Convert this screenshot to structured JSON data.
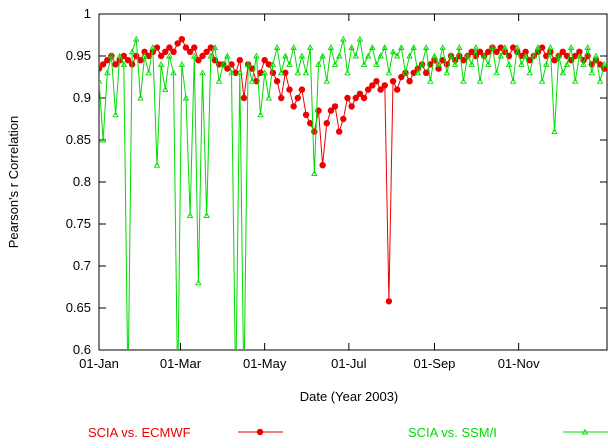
{
  "chart_data": {
    "type": "line",
    "xlabel": "Date (Year 2003)",
    "ylabel": "Pearson's r Correlation",
    "x": [
      0,
      3,
      6,
      9,
      12,
      15,
      18,
      21,
      24,
      27,
      30,
      33,
      36,
      39,
      42,
      45,
      48,
      51,
      54,
      57,
      60,
      63,
      66,
      69,
      72,
      75,
      78,
      81,
      84,
      87,
      90,
      93,
      96,
      99,
      102,
      105,
      108,
      111,
      114,
      117,
      120,
      123,
      126,
      129,
      132,
      135,
      138,
      141,
      144,
      147,
      150,
      153,
      156,
      159,
      162,
      165,
      168,
      171,
      174,
      177,
      180,
      183,
      186,
      189,
      192,
      195,
      198,
      201,
      204,
      207,
      210,
      213,
      216,
      219,
      222,
      225,
      228,
      231,
      234,
      237,
      240,
      243,
      246,
      249,
      252,
      255,
      258,
      261,
      264,
      267,
      270,
      273,
      276,
      279,
      282,
      285,
      288,
      291,
      294,
      297,
      300,
      303,
      306,
      309,
      312,
      315,
      318,
      321,
      324,
      327,
      330,
      333,
      336,
      339,
      342,
      345,
      348,
      351,
      354,
      357,
      360,
      363,
      366
    ],
    "xlim": [
      0,
      368
    ],
    "xticks": [
      {
        "value": 0,
        "label": "01-Jan"
      },
      {
        "value": 59,
        "label": "01-Mar"
      },
      {
        "value": 120,
        "label": "01-May"
      },
      {
        "value": 181,
        "label": "01-Jul"
      },
      {
        "value": 243,
        "label": "01-Sep"
      },
      {
        "value": 304,
        "label": "01-Nov"
      }
    ],
    "ylim": [
      0.6,
      1
    ],
    "yticks": [
      0.6,
      0.65,
      0.7,
      0.75,
      0.8,
      0.85,
      0.9,
      0.95,
      1
    ],
    "series": [
      {
        "name": "SCIA vs. ECMWF",
        "color": "#ee0000",
        "marker": "circle",
        "values": [
          0.935,
          0.94,
          0.945,
          0.95,
          0.94,
          0.945,
          0.95,
          0.945,
          0.94,
          0.95,
          0.945,
          0.955,
          0.95,
          0.955,
          0.96,
          0.95,
          0.955,
          0.96,
          0.955,
          0.965,
          0.97,
          0.96,
          0.955,
          0.96,
          0.945,
          0.95,
          0.955,
          0.96,
          0.945,
          0.94,
          0.94,
          0.935,
          0.94,
          0.93,
          0.945,
          0.9,
          0.94,
          0.935,
          0.92,
          0.93,
          0.945,
          0.94,
          0.93,
          0.92,
          0.9,
          0.93,
          0.91,
          0.89,
          0.9,
          0.91,
          0.88,
          0.87,
          0.86,
          0.885,
          0.82,
          0.87,
          0.885,
          0.89,
          0.86,
          0.875,
          0.9,
          0.89,
          0.9,
          0.905,
          0.9,
          0.91,
          0.915,
          0.92,
          0.91,
          0.915,
          0.658,
          0.92,
          0.91,
          0.925,
          0.93,
          0.92,
          0.93,
          0.935,
          0.94,
          0.93,
          0.94,
          0.945,
          0.935,
          0.945,
          0.94,
          0.95,
          0.945,
          0.95,
          0.945,
          0.95,
          0.955,
          0.95,
          0.955,
          0.95,
          0.955,
          0.96,
          0.955,
          0.96,
          0.955,
          0.95,
          0.96,
          0.955,
          0.95,
          0.955,
          0.945,
          0.95,
          0.955,
          0.96,
          0.95,
          0.955,
          0.945,
          0.95,
          0.955,
          0.95,
          0.945,
          0.95,
          0.955,
          0.945,
          0.95,
          0.94,
          0.945,
          0.94,
          0.935
        ]
      },
      {
        "name": "SCIA vs. SSM/I",
        "color": "#00dd00",
        "marker": "triangle",
        "values": [
          0.92,
          0.85,
          0.93,
          0.95,
          0.88,
          0.95,
          0.94,
          0.55,
          0.955,
          0.97,
          0.9,
          0.95,
          0.93,
          0.96,
          0.82,
          0.94,
          0.91,
          0.95,
          0.93,
          0.55,
          0.94,
          0.9,
          0.76,
          0.95,
          0.68,
          0.93,
          0.76,
          0.95,
          0.96,
          0.92,
          0.94,
          0.95,
          0.93,
          0.55,
          0.93,
          0.55,
          0.94,
          0.92,
          0.95,
          0.88,
          0.93,
          0.9,
          0.94,
          0.96,
          0.93,
          0.95,
          0.94,
          0.96,
          0.93,
          0.95,
          0.93,
          0.96,
          0.81,
          0.94,
          0.95,
          0.92,
          0.96,
          0.94,
          0.95,
          0.97,
          0.93,
          0.96,
          0.95,
          0.97,
          0.94,
          0.95,
          0.96,
          0.94,
          0.95,
          0.96,
          0.93,
          0.955,
          0.95,
          0.96,
          0.93,
          0.95,
          0.96,
          0.93,
          0.94,
          0.96,
          0.92,
          0.95,
          0.94,
          0.96,
          0.93,
          0.95,
          0.94,
          0.96,
          0.92,
          0.95,
          0.94,
          0.96,
          0.92,
          0.95,
          0.94,
          0.96,
          0.93,
          0.95,
          0.96,
          0.94,
          0.92,
          0.96,
          0.94,
          0.95,
          0.93,
          0.95,
          0.96,
          0.92,
          0.94,
          0.96,
          0.86,
          0.95,
          0.93,
          0.94,
          0.96,
          0.92,
          0.95,
          0.94,
          0.96,
          0.93,
          0.95,
          0.92,
          0.94
        ]
      }
    ]
  }
}
